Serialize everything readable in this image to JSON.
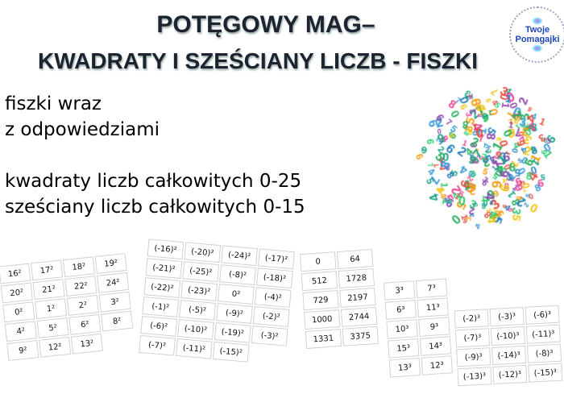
{
  "title": {
    "line1": "POTĘGOWY MAG–",
    "line2": "KWADRATY I SZEŚCIANY LICZB - FISZKI"
  },
  "logo": {
    "line1": "Twoje",
    "line2": "Pomagajki"
  },
  "description": {
    "line1": "fiszki wraz",
    "line2": "z odpowiedziami",
    "line3": "kwadraty liczb całkowitych 0-25",
    "line4": "sześciany liczb całkowitych 0-15"
  },
  "accent_colors": {
    "title": "#1c2430",
    "logo": "#1f46b6"
  },
  "flashcards": {
    "squares": [
      "16²",
      "17²",
      "18²",
      "19²",
      "20²",
      "21²",
      "22²",
      "24²",
      "0²",
      "1²",
      "2²",
      "3²",
      "4²",
      "5²",
      "6²",
      "8²",
      "9²",
      "12²",
      "13²"
    ],
    "negative_squares": [
      "(-16)²",
      "(-20)²",
      "(-24)²",
      "(-17)²",
      "(-21)²",
      "(-25)²",
      "(-8)²",
      "(-18)²",
      "(-22)²",
      "(-23)²",
      "0²",
      "(-4)²",
      "(-1)²",
      "(-5)²",
      "(-9)²",
      "(-2)²",
      "(-6)²",
      "(-10)²",
      "(-19)²",
      "(-3)²",
      "(-7)²",
      "(-11)²",
      "(-15)²"
    ],
    "cube_answers": [
      "0",
      "64",
      "512",
      "1728",
      "729",
      "2197",
      "1000",
      "2744",
      "1331",
      "3375"
    ],
    "cubes": [
      "3³",
      "7³",
      "6³",
      "11³",
      "10³",
      "9³",
      "15³",
      "14³",
      "13³",
      "12³"
    ],
    "negative_cubes": [
      "(-2)³",
      "(-3)³",
      "(-6)³",
      "(-7)³",
      "(-10)³",
      "(-11)³",
      "(-9)³",
      "(-14)³",
      "(-8)³",
      "(-13)³",
      "(-12)³",
      "(-15)³"
    ]
  }
}
